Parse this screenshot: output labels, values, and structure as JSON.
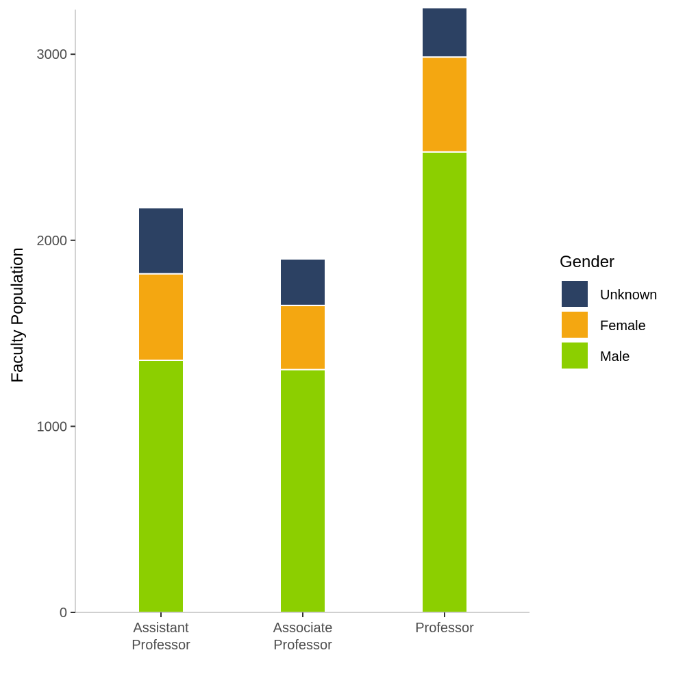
{
  "chart_data": {
    "type": "bar",
    "stacked": true,
    "title": "",
    "xlabel": "",
    "ylabel": "Faculty Population",
    "ylim": [
      0,
      3240
    ],
    "yticks": [
      0,
      1000,
      2000,
      3000
    ],
    "grid": false,
    "categories": [
      [
        "Assistant",
        "Professor"
      ],
      [
        "Associate",
        "Professor"
      ],
      [
        "Professor"
      ]
    ],
    "series": [
      {
        "name": "Male",
        "color": "#8ccf00",
        "values": [
          1355,
          1305,
          2475
        ]
      },
      {
        "name": "Female",
        "color": "#f4a711",
        "values": [
          465,
          345,
          510
        ]
      },
      {
        "name": "Unknown",
        "color": "#2c4163",
        "values": [
          355,
          250,
          265
        ]
      }
    ],
    "legend": {
      "title": "Gender",
      "position": "right",
      "order": [
        "Unknown",
        "Female",
        "Male"
      ]
    }
  }
}
